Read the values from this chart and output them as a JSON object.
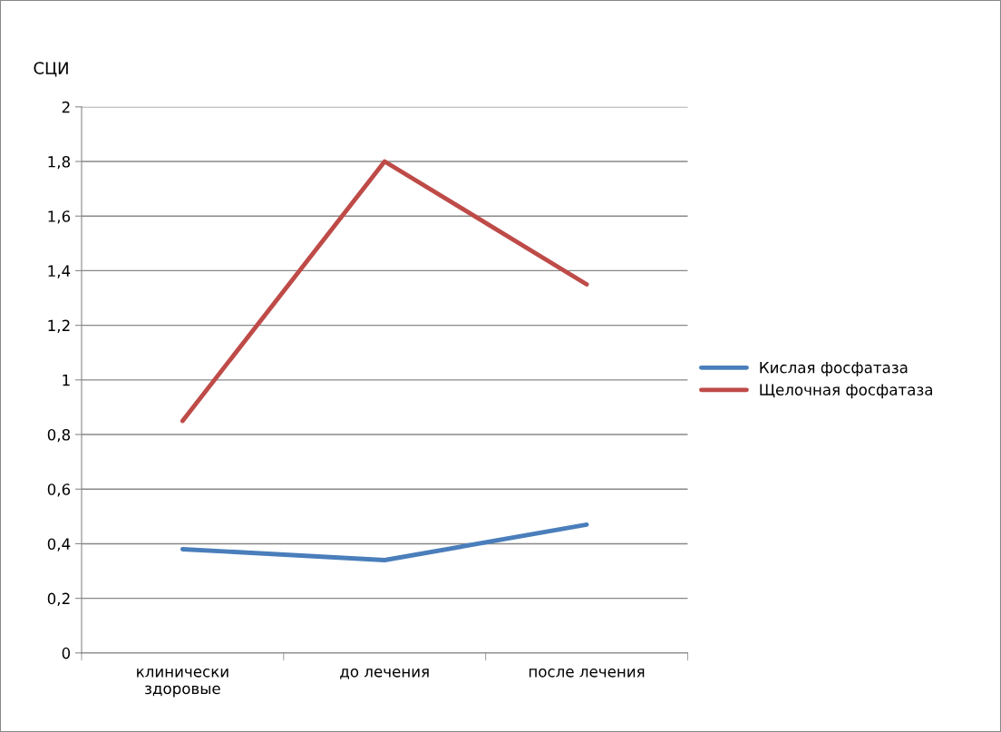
{
  "chart_data": {
    "type": "line",
    "ylabel": "СЦИ",
    "categories": [
      "клинически\nздоровые",
      "до лечения",
      "после лечения"
    ],
    "series": [
      {
        "name": "Кислая фосфатаза",
        "color": "#4a7ebb",
        "values": [
          0.38,
          0.34,
          0.47
        ]
      },
      {
        "name": "Щелочная фосфатаза",
        "color": "#be4b48",
        "values": [
          0.85,
          1.8,
          1.35
        ]
      }
    ],
    "ylim": [
      0,
      2
    ],
    "yticks": [
      0,
      {
        "value": 0.2,
        "label": "0,2"
      },
      {
        "value": 0.4,
        "label": "0,4"
      },
      {
        "value": 0.6,
        "label": "0,6"
      },
      {
        "value": 0.8,
        "label": "0,8"
      },
      1,
      {
        "value": 1.2,
        "label": "1,2"
      },
      {
        "value": 1.4,
        "label": "1,4"
      },
      {
        "value": 1.6,
        "label": "1,6"
      },
      {
        "value": 1.8,
        "label": "1,8"
      },
      2
    ],
    "grid": "y",
    "legend": "right",
    "marker": "none",
    "line_style": "solid"
  }
}
